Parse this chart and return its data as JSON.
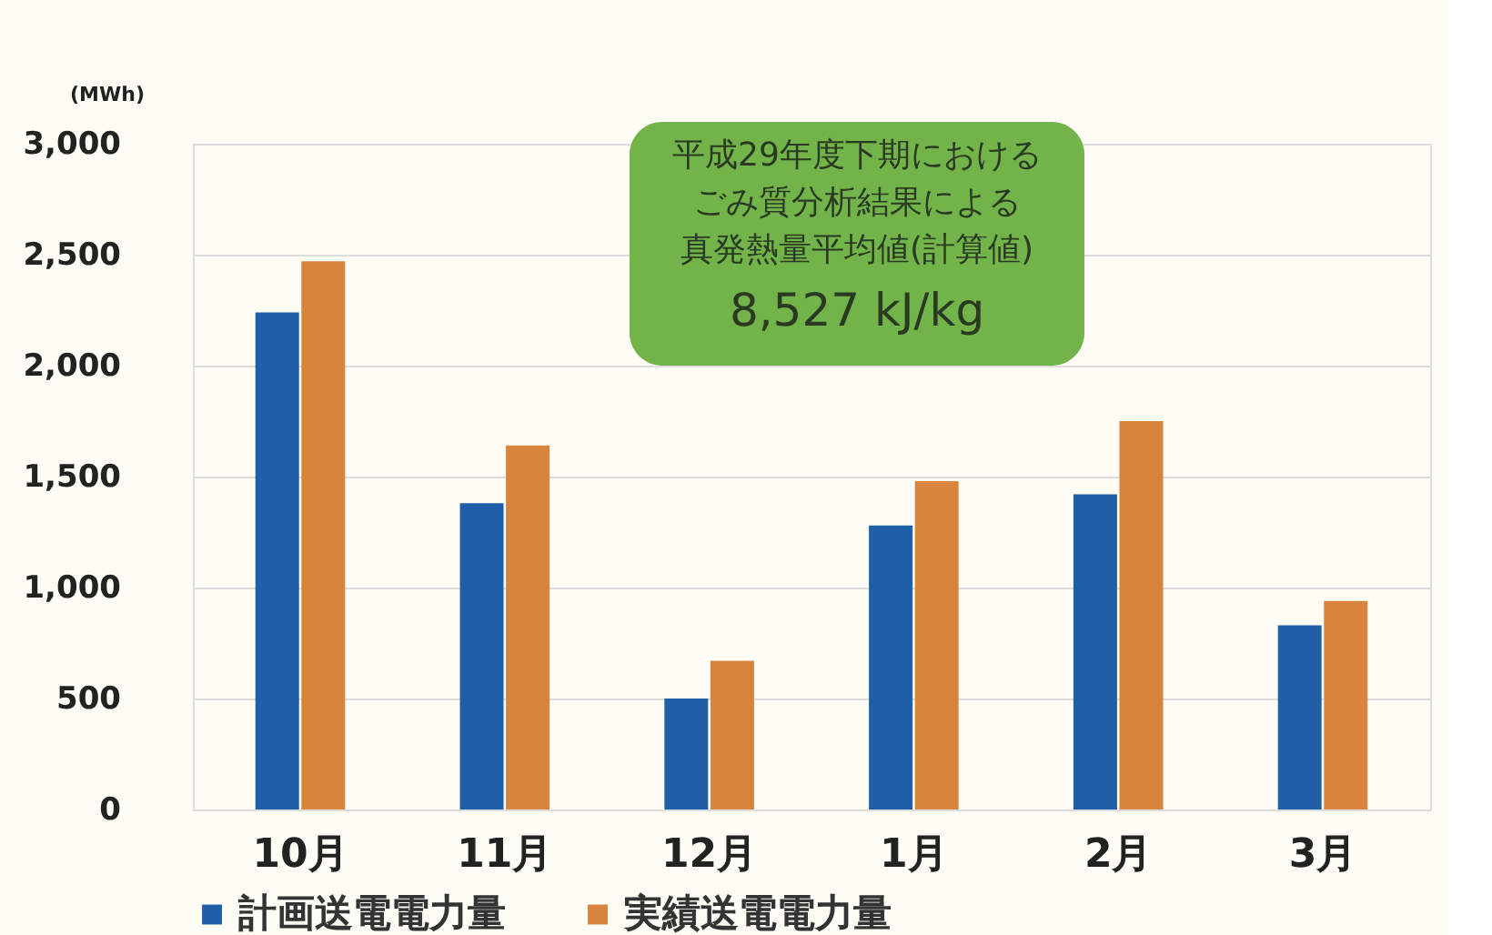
{
  "chart_data": {
    "type": "bar",
    "ylabel": "(MWh)",
    "categories": [
      "10月",
      "11月",
      "12月",
      "1月",
      "2月",
      "3月"
    ],
    "series": [
      {
        "name": "計画送電電力量",
        "color": "#1f5fa8",
        "values": [
          2240,
          1380,
          500,
          1280,
          1420,
          830
        ]
      },
      {
        "name": "実績送電電力量",
        "color": "#d9843e",
        "values": [
          2470,
          1640,
          670,
          1480,
          1750,
          940
        ]
      }
    ],
    "ylim": [
      0,
      3000
    ],
    "yticks": [
      {
        "value": 0,
        "label": "0"
      },
      {
        "value": 500,
        "label": "500"
      },
      {
        "value": 1000,
        "label": "1,000"
      },
      {
        "value": 1500,
        "label": "1,500"
      },
      {
        "value": 2000,
        "label": "2,000"
      },
      {
        "value": 2500,
        "label": "2,500"
      },
      {
        "value": 3000,
        "label": "3,000"
      }
    ],
    "grid": "y",
    "legend": "bottom",
    "annotations": [
      "平成29年度下期におけるごみ質分析結果による真発熱量平均値(計算値)",
      "8,527 kJ/kg"
    ]
  }
}
